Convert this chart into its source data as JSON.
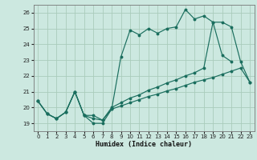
{
  "xlabel": "Humidex (Indice chaleur)",
  "bg_color": "#cce8e0",
  "grid_color": "#aaccbb",
  "line_color": "#1a6e5e",
  "xlim": [
    -0.5,
    23.5
  ],
  "ylim": [
    18.5,
    26.5
  ],
  "xticks": [
    0,
    1,
    2,
    3,
    4,
    5,
    6,
    7,
    8,
    9,
    10,
    11,
    12,
    13,
    14,
    15,
    16,
    17,
    18,
    19,
    20,
    21,
    22,
    23
  ],
  "yticks": [
    19,
    20,
    21,
    22,
    23,
    24,
    25,
    26
  ],
  "series1_x": [
    0,
    1,
    2,
    3,
    4,
    5,
    6,
    7,
    8,
    9,
    10,
    11,
    12,
    13,
    14,
    15,
    16,
    17,
    18,
    19,
    20,
    21
  ],
  "series1_y": [
    20.4,
    19.6,
    19.3,
    19.7,
    21.0,
    19.5,
    19.0,
    19.0,
    19.9,
    23.2,
    24.9,
    24.6,
    25.0,
    24.7,
    25.0,
    25.1,
    26.2,
    25.6,
    25.8,
    25.4,
    23.3,
    22.9
  ],
  "series2_x": [
    0,
    1,
    2,
    3,
    4,
    5,
    6,
    7,
    8,
    9,
    10,
    11,
    12,
    13,
    14,
    15,
    16,
    17,
    18,
    19,
    20,
    21,
    22,
    23
  ],
  "series2_y": [
    20.4,
    19.6,
    19.3,
    19.7,
    21.0,
    19.5,
    19.3,
    19.2,
    19.9,
    20.1,
    20.3,
    20.5,
    20.7,
    20.85,
    21.05,
    21.2,
    21.4,
    21.6,
    21.75,
    21.9,
    22.1,
    22.3,
    22.5,
    21.6
  ],
  "series3_x": [
    0,
    1,
    2,
    3,
    4,
    5,
    6,
    7,
    8,
    9,
    10,
    11,
    12,
    13,
    14,
    15,
    16,
    17,
    18,
    19,
    20,
    21,
    22,
    23
  ],
  "series3_y": [
    20.4,
    19.6,
    19.3,
    19.7,
    21.0,
    19.5,
    19.5,
    19.2,
    20.0,
    20.3,
    20.6,
    20.8,
    21.1,
    21.3,
    21.55,
    21.75,
    22.0,
    22.2,
    22.5,
    25.4,
    25.4,
    25.1,
    22.9,
    21.6
  ]
}
